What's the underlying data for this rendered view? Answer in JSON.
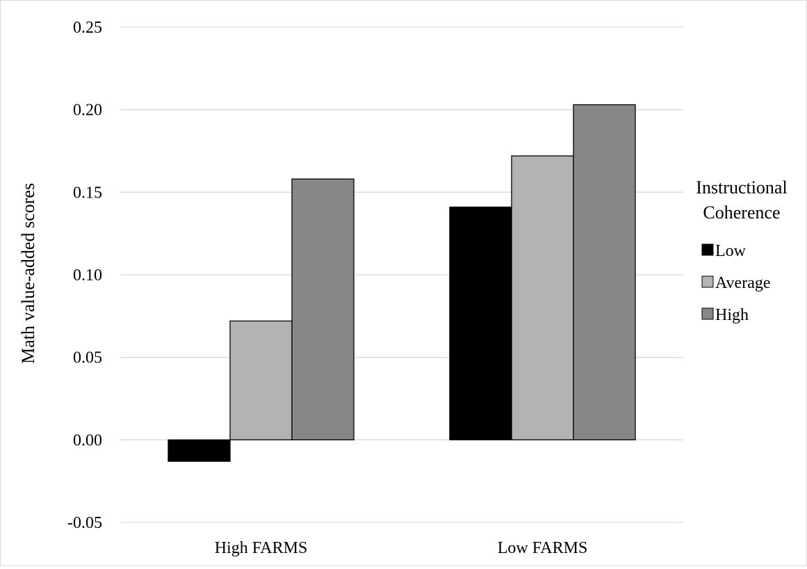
{
  "chart_data": {
    "type": "bar",
    "categories": [
      "High FARMS",
      "Low FARMS"
    ],
    "series": [
      {
        "name": "Low",
        "values": [
          -0.013,
          0.141
        ],
        "color": "#000000"
      },
      {
        "name": "Average",
        "values": [
          0.072,
          0.172
        ],
        "color": "#b3b3b3"
      },
      {
        "name": "High",
        "values": [
          0.158,
          0.203
        ],
        "color": "#878787"
      }
    ],
    "ylabel": "Math value-added scores",
    "xlabel": "",
    "ylim": [
      -0.05,
      0.25
    ],
    "yticks": [
      -0.05,
      0.0,
      0.05,
      0.1,
      0.15,
      0.2,
      0.25
    ],
    "ytick_labels": [
      "-0.05",
      "0.00",
      "0.05",
      "0.10",
      "0.15",
      "0.20",
      "0.25"
    ],
    "legend": {
      "title_lines": [
        "Instructional",
        "Coherence"
      ],
      "placement": "right"
    },
    "grid": true,
    "gridline_color": "#d9d9d9",
    "bar_edge_color": "#000000"
  }
}
